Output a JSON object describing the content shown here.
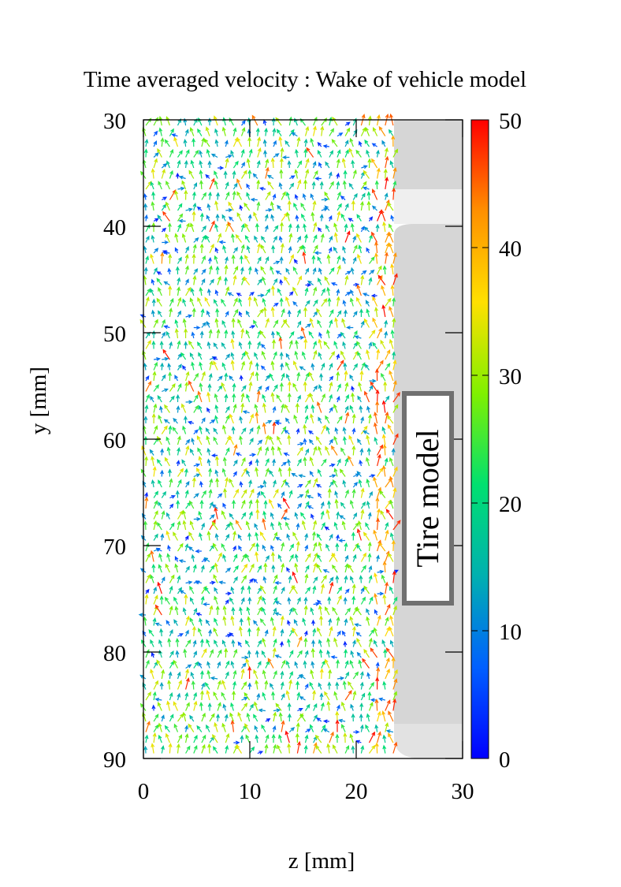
{
  "chart_data": {
    "type": "quiver",
    "title": "Time averaged velocity : Wake of vehicle model",
    "xlabel": "z [mm]",
    "ylabel": "y [mm]",
    "xlim": [
      0,
      30
    ],
    "ylim": [
      90,
      30
    ],
    "x_ticks": [
      "0",
      "10",
      "20",
      "30"
    ],
    "y_ticks": [
      "30",
      "40",
      "50",
      "60",
      "70",
      "80",
      "90"
    ],
    "colorbar": {
      "range": [
        0,
        50
      ],
      "ticks": [
        "0",
        "10",
        "20",
        "30",
        "40",
        "50"
      ],
      "colors": [
        "#0000ff",
        "#0060ff",
        "#00b0b0",
        "#00e070",
        "#80f000",
        "#ffe000",
        "#ff9000",
        "#ff0000"
      ]
    },
    "vector_grid": {
      "z_start": 0.0,
      "z_end": 23.5,
      "z_step": 0.75,
      "y_start": 30.3,
      "y_end": 89.8,
      "y_step": 1.0,
      "typical_speed": 25,
      "description": "mostly upward (negative y) velocity of ~15-35 with higher speeds (>40) along the tire boundary at z≈22-23"
    },
    "annotation": {
      "label": "Tire model",
      "z_range": [
        24.5,
        29
      ],
      "y_range": [
        55.8,
        75.5
      ]
    },
    "tire_region": {
      "z_range": [
        23.5,
        30
      ],
      "y_range": [
        30,
        90
      ],
      "gap_y_range": [
        36.5,
        39.8
      ]
    }
  }
}
